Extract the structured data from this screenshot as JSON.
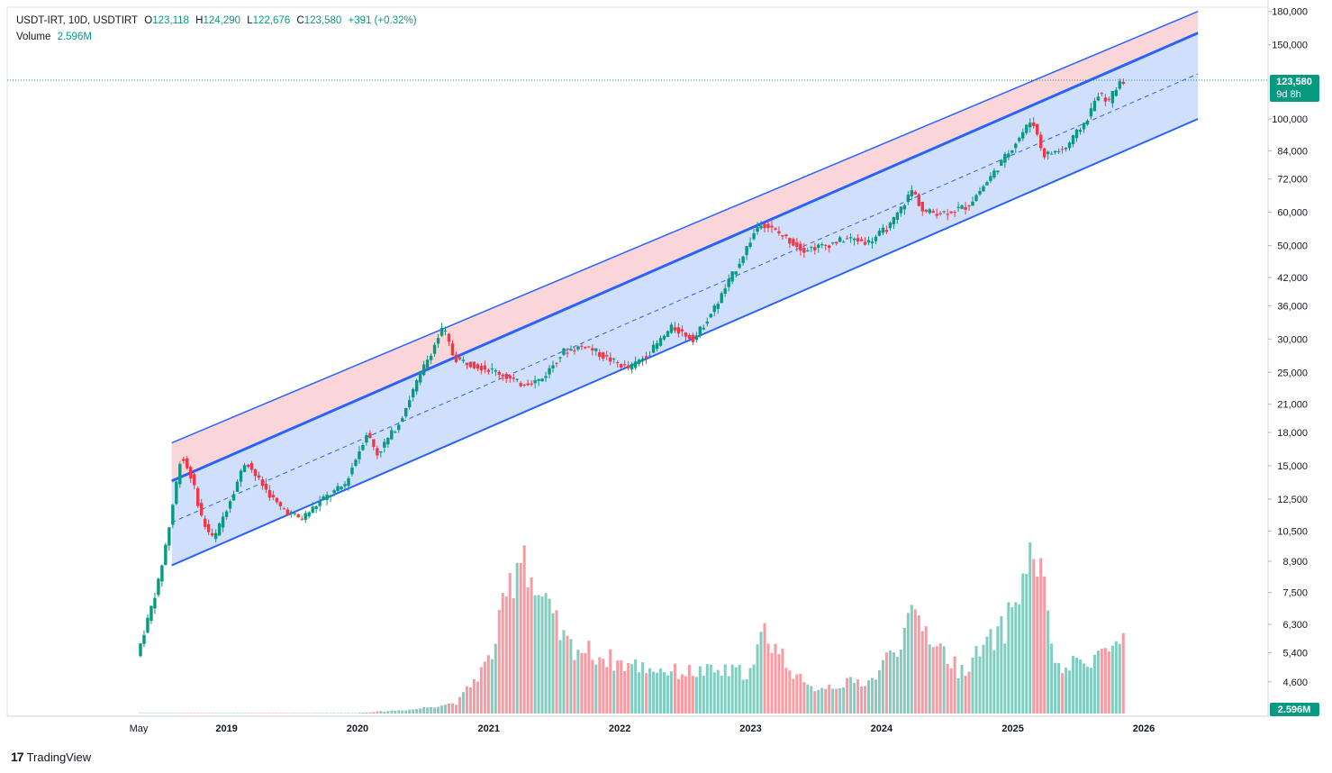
{
  "header": {
    "symbol": "USDT-IRT, 10D, USDTIRT",
    "open_label": "O",
    "open": "123,118",
    "high_label": "H",
    "high": "124,290",
    "low_label": "L",
    "low": "122,676",
    "close_label": "C",
    "close": "123,580",
    "change": "+391 (+0.32%)",
    "volume_label": "Volume",
    "volume": "2.596M"
  },
  "price_tag": {
    "value": "123,580",
    "countdown": "9d 8h"
  },
  "volume_tag": "2.596M",
  "footer": {
    "brand": "TradingView"
  },
  "colors": {
    "up": "#089981",
    "down": "#f23645",
    "channel_line": "#2962ff",
    "upper_fill": "#f8c8cc",
    "lower_fill": "#bcd3fb"
  },
  "chart_data": {
    "type": "candlestick",
    "scale": "log",
    "y_ticks": [
      "180,000",
      "150,000",
      "100,000",
      "84,000",
      "72,000",
      "60,000",
      "50,000",
      "42,000",
      "36,000",
      "30,000",
      "25,000",
      "21,000",
      "18,000",
      "15,000",
      "12,500",
      "10,500",
      "8,900",
      "7,500",
      "6,300",
      "5,400",
      "4,600"
    ],
    "y_tick_values": [
      180000,
      150000,
      100000,
      84000,
      72000,
      60000,
      50000,
      42000,
      36000,
      30000,
      25000,
      21000,
      18000,
      15000,
      12500,
      10500,
      8900,
      7500,
      6300,
      5400,
      4600
    ],
    "x_ticks": [
      "May",
      "2019",
      "2020",
      "2021",
      "2022",
      "2023",
      "2024",
      "2025",
      "2026"
    ],
    "x_tick_dates": [
      "2018-05-01",
      "2019-01-01",
      "2020-01-01",
      "2021-01-01",
      "2022-01-01",
      "2023-01-01",
      "2024-01-01",
      "2025-01-01",
      "2026-01-01"
    ],
    "last_price": 123580,
    "price_path": [
      [
        "2018-05-01",
        5300
      ],
      [
        "2018-06-01",
        6500
      ],
      [
        "2018-07-01",
        8000
      ],
      [
        "2018-08-01",
        11000
      ],
      [
        "2018-09-01",
        16000
      ],
      [
        "2018-10-01",
        14000
      ],
      [
        "2018-11-01",
        11000
      ],
      [
        "2018-12-01",
        10000
      ],
      [
        "2019-02-01",
        13500
      ],
      [
        "2019-03-01",
        15500
      ],
      [
        "2019-04-01",
        14000
      ],
      [
        "2019-06-01",
        12000
      ],
      [
        "2019-08-01",
        11200
      ],
      [
        "2019-10-01",
        12500
      ],
      [
        "2019-12-01",
        13500
      ],
      [
        "2020-02-01",
        18000
      ],
      [
        "2020-03-01",
        16000
      ],
      [
        "2020-05-01",
        19000
      ],
      [
        "2020-07-01",
        25000
      ],
      [
        "2020-09-01",
        32000
      ],
      [
        "2020-10-01",
        27000
      ],
      [
        "2020-12-01",
        26000
      ],
      [
        "2021-02-01",
        25000
      ],
      [
        "2021-04-01",
        23500
      ],
      [
        "2021-06-01",
        24000
      ],
      [
        "2021-08-01",
        28000
      ],
      [
        "2021-10-01",
        29000
      ],
      [
        "2021-12-01",
        27000
      ],
      [
        "2022-02-01",
        25500
      ],
      [
        "2022-04-01",
        28000
      ],
      [
        "2022-06-01",
        32000
      ],
      [
        "2022-08-01",
        30000
      ],
      [
        "2022-10-01",
        36000
      ],
      [
        "2022-12-01",
        45000
      ],
      [
        "2023-02-01",
        57000
      ],
      [
        "2023-04-01",
        53000
      ],
      [
        "2023-06-01",
        49000
      ],
      [
        "2023-08-01",
        50000
      ],
      [
        "2023-10-01",
        52000
      ],
      [
        "2023-12-01",
        51000
      ],
      [
        "2024-02-01",
        56000
      ],
      [
        "2024-04-01",
        68000
      ],
      [
        "2024-05-01",
        60000
      ],
      [
        "2024-07-01",
        60000
      ],
      [
        "2024-09-01",
        62000
      ],
      [
        "2024-11-01",
        72000
      ],
      [
        "2025-01-01",
        85000
      ],
      [
        "2025-03-01",
        100000
      ],
      [
        "2025-04-01",
        82000
      ],
      [
        "2025-06-01",
        85000
      ],
      [
        "2025-08-01",
        100000
      ],
      [
        "2025-09-01",
        115000
      ],
      [
        "2025-10-01",
        110000
      ],
      [
        "2025-11-01",
        123580
      ]
    ],
    "volume_path": [
      [
        "2018-05-01",
        0
      ],
      [
        "2019-12-01",
        0
      ],
      [
        "2020-06-01",
        150000
      ],
      [
        "2020-10-01",
        400000
      ],
      [
        "2021-01-01",
        2000000
      ],
      [
        "2021-04-01",
        6300000
      ],
      [
        "2021-05-01",
        4500000
      ],
      [
        "2021-08-01",
        2500000
      ],
      [
        "2022-01-01",
        1800000
      ],
      [
        "2022-06-01",
        1500000
      ],
      [
        "2023-01-01",
        1500000
      ],
      [
        "2023-02-01",
        3000000
      ],
      [
        "2023-06-01",
        900000
      ],
      [
        "2023-12-01",
        1200000
      ],
      [
        "2024-04-01",
        3500000
      ],
      [
        "2024-08-01",
        1500000
      ],
      [
        "2024-12-01",
        3000000
      ],
      [
        "2025-03-01",
        6000000
      ],
      [
        "2025-05-01",
        1500000
      ],
      [
        "2025-09-01",
        2200000
      ],
      [
        "2025-11-01",
        2596000
      ]
    ],
    "channel": {
      "start": "2018-08-01",
      "end": "2026-06-01",
      "outer_top": [
        17000,
        180000
      ],
      "middle": [
        13800,
        160000
      ],
      "median_dashed": [
        11000,
        128000
      ],
      "bottom": [
        8700,
        100000
      ]
    }
  }
}
